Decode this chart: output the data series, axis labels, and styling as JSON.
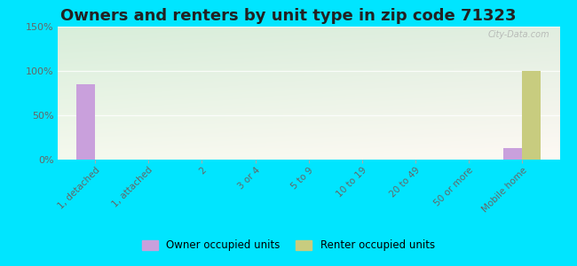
{
  "title": "Owners and renters by unit type in zip code 71323",
  "categories": [
    "1, detached",
    "1, attached",
    "2",
    "3 or 4",
    "5 to 9",
    "10 to 19",
    "20 to 49",
    "50 or more",
    "Mobile home"
  ],
  "owner_values": [
    85,
    0,
    0,
    0,
    0,
    0,
    0,
    0,
    13
  ],
  "renter_values": [
    0,
    0,
    0,
    0,
    0,
    0,
    0,
    0,
    100
  ],
  "owner_color": "#c9a0dc",
  "renter_color": "#c8cc7f",
  "outer_bg": "#00e5ff",
  "ylim": [
    0,
    150
  ],
  "yticks": [
    0,
    50,
    100,
    150
  ],
  "ytick_labels": [
    "0%",
    "50%",
    "100%",
    "150%"
  ],
  "bar_width": 0.35,
  "title_fontsize": 13,
  "legend_owner": "Owner occupied units",
  "legend_renter": "Renter occupied units",
  "watermark": "City-Data.com"
}
